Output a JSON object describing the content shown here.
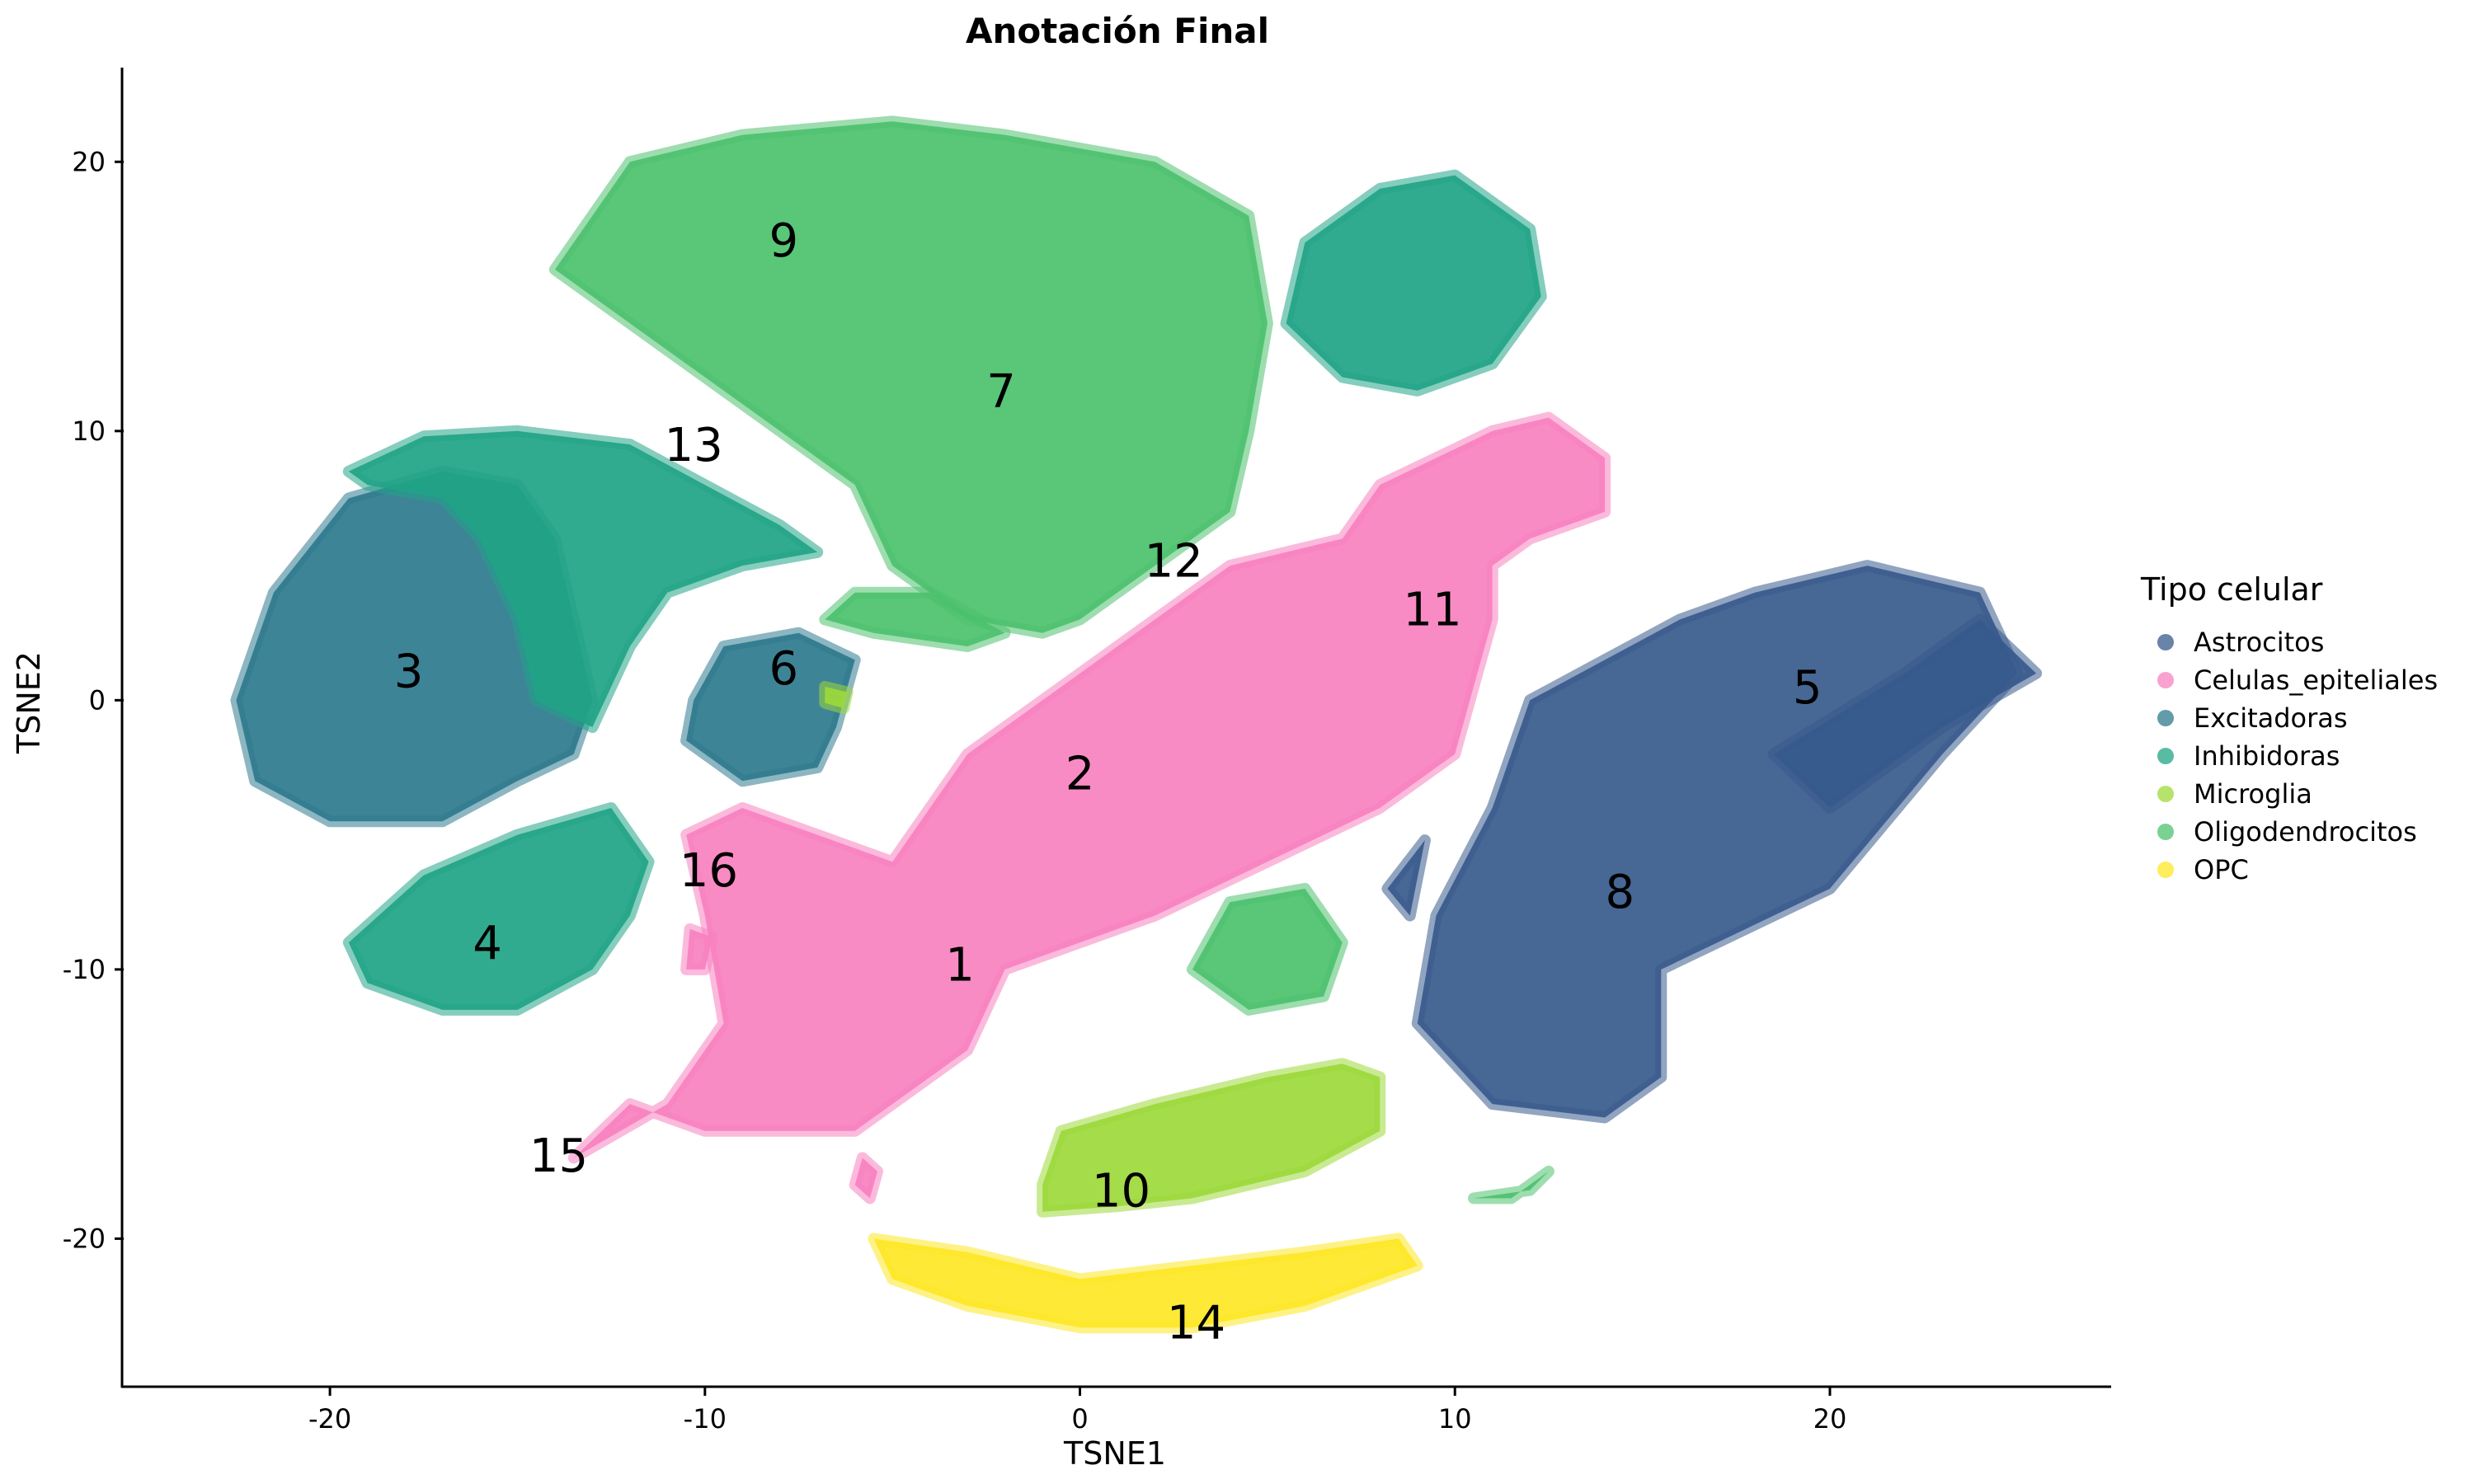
{
  "chart_data": {
    "type": "scatter",
    "title": "Anotación Final",
    "xlabel": "TSNE1",
    "ylabel": "TSNE2",
    "xlim": [
      -25.5,
      27.5
    ],
    "ylim": [
      -25.5,
      23.5
    ],
    "x_ticks": [
      -20,
      -10,
      0,
      10,
      20
    ],
    "x_tick_labels": [
      "-20",
      "-10",
      "0",
      "10",
      "20"
    ],
    "y_ticks": [
      -20,
      -10,
      0,
      10,
      20
    ],
    "y_tick_labels": [
      "-20",
      "-10",
      "0",
      "10",
      "20"
    ],
    "grid": false,
    "legend": {
      "title": "Tipo celular",
      "placement": "right",
      "entries": [
        {
          "name": "Astrocitos",
          "color": "#375A8C"
        },
        {
          "name": "Celulas_epiteliales",
          "color": "#F781BF"
        },
        {
          "name": "Excitadoras",
          "color": "#2E7A8E"
        },
        {
          "name": "Inhibidoras",
          "color": "#20A486"
        },
        {
          "name": "Microglia",
          "color": "#9DD93B"
        },
        {
          "name": "Oligodendrocitos",
          "color": "#4CC16D"
        },
        {
          "name": "OPC",
          "color": "#FDE725"
        }
      ]
    },
    "series": [
      {
        "name": "Astrocitos",
        "color": "#375A8C",
        "regions": [
          [
            [
              15.5,
              -10
            ],
            [
              20,
              -7
            ],
            [
              23,
              -2
            ],
            [
              25,
              1
            ],
            [
              24,
              4
            ],
            [
              21,
              5
            ],
            [
              18,
              4
            ],
            [
              16,
              3
            ],
            [
              12,
              0
            ],
            [
              11,
              -4
            ],
            [
              9.5,
              -8
            ],
            [
              9,
              -12
            ],
            [
              11,
              -15
            ],
            [
              14,
              -15.5
            ],
            [
              15.5,
              -14
            ]
          ],
          [
            [
              18.5,
              -2
            ],
            [
              22,
              1
            ],
            [
              24,
              3
            ],
            [
              25.5,
              1
            ],
            [
              23,
              -1
            ],
            [
              20,
              -4
            ]
          ],
          [
            [
              8.2,
              -7
            ],
            [
              9.2,
              -5.2
            ],
            [
              8.8,
              -8
            ]
          ]
        ]
      },
      {
        "name": "Celulas_epiteliales",
        "color": "#F781BF",
        "regions": [
          [
            [
              -13.5,
              -17
            ],
            [
              -11,
              -15
            ],
            [
              -9.5,
              -12
            ],
            [
              -10,
              -8
            ],
            [
              -10.5,
              -5
            ],
            [
              -9,
              -4
            ],
            [
              -7,
              -5
            ],
            [
              -5,
              -6
            ],
            [
              -3,
              -2
            ],
            [
              1,
              2
            ],
            [
              4,
              5
            ],
            [
              7,
              6
            ],
            [
              8,
              8
            ],
            [
              11,
              10
            ],
            [
              12.5,
              10.5
            ],
            [
              14,
              9
            ],
            [
              14,
              7
            ],
            [
              12,
              6
            ],
            [
              11,
              5
            ],
            [
              11,
              3
            ],
            [
              10,
              -2
            ],
            [
              8,
              -4
            ],
            [
              5,
              -6
            ],
            [
              2,
              -8
            ],
            [
              0,
              -9
            ],
            [
              -2,
              -10
            ],
            [
              -3,
              -13
            ],
            [
              -6,
              -16
            ],
            [
              -10,
              -16
            ],
            [
              -12,
              -15
            ]
          ],
          [
            [
              -5.8,
              -17
            ],
            [
              -5.4,
              -17.5
            ],
            [
              -5.6,
              -18.5
            ],
            [
              -6,
              -18
            ]
          ],
          [
            [
              -10.4,
              -8.5
            ],
            [
              -9.8,
              -8.8
            ],
            [
              -10,
              -10
            ],
            [
              -10.5,
              -10
            ]
          ]
        ]
      },
      {
        "name": "Excitadoras",
        "color": "#2E7A8E",
        "regions": [
          [
            [
              -22.5,
              0
            ],
            [
              -21.5,
              4
            ],
            [
              -19.5,
              7.5
            ],
            [
              -17,
              8.5
            ],
            [
              -15,
              8
            ],
            [
              -14,
              6
            ],
            [
              -13.5,
              3
            ],
            [
              -13,
              0
            ],
            [
              -13.5,
              -2
            ],
            [
              -15,
              -3
            ],
            [
              -17,
              -4.5
            ],
            [
              -20,
              -4.5
            ],
            [
              -22,
              -3
            ]
          ],
          [
            [
              -10.3,
              0
            ],
            [
              -9.5,
              2
            ],
            [
              -7.5,
              2.5
            ],
            [
              -6,
              1.5
            ],
            [
              -6.5,
              -1
            ],
            [
              -7,
              -2.5
            ],
            [
              -9,
              -3
            ],
            [
              -10.5,
              -1.5
            ]
          ]
        ]
      },
      {
        "name": "Inhibidoras",
        "color": "#20A486",
        "regions": [
          [
            [
              -19.5,
              8.5
            ],
            [
              -17.5,
              9.8
            ],
            [
              -15,
              10
            ],
            [
              -12,
              9.5
            ],
            [
              -10,
              8
            ],
            [
              -8,
              6.5
            ],
            [
              -7,
              5.5
            ],
            [
              -9,
              5
            ],
            [
              -11,
              4
            ],
            [
              -12,
              2
            ],
            [
              -13,
              -1
            ],
            [
              -14.5,
              0
            ],
            [
              -15,
              3
            ],
            [
              -16,
              6
            ],
            [
              -17,
              7.5
            ],
            [
              -19,
              8
            ]
          ],
          [
            [
              -19.5,
              -9
            ],
            [
              -17.5,
              -6.5
            ],
            [
              -15,
              -5
            ],
            [
              -12.5,
              -4
            ],
            [
              -11.5,
              -6
            ],
            [
              -12,
              -8
            ],
            [
              -13,
              -10
            ],
            [
              -15,
              -11.5
            ],
            [
              -17,
              -11.5
            ],
            [
              -19,
              -10.5
            ]
          ],
          [
            [
              5.5,
              14
            ],
            [
              6,
              17
            ],
            [
              8,
              19
            ],
            [
              10,
              19.5
            ],
            [
              12,
              17.5
            ],
            [
              12.3,
              15
            ],
            [
              11,
              12.5
            ],
            [
              9,
              11.5
            ],
            [
              7,
              12
            ]
          ]
        ]
      },
      {
        "name": "Microglia",
        "color": "#9DD93B",
        "regions": [
          [
            [
              -1,
              -18
            ],
            [
              -0.5,
              -16
            ],
            [
              2,
              -15
            ],
            [
              5,
              -14
            ],
            [
              7,
              -13.5
            ],
            [
              8,
              -14
            ],
            [
              8,
              -16
            ],
            [
              6,
              -17.5
            ],
            [
              3,
              -18.5
            ],
            [
              1,
              -18.8
            ],
            [
              -1,
              -19
            ]
          ],
          [
            [
              -6.8,
              0.5
            ],
            [
              -6.2,
              0.3
            ],
            [
              -6.3,
              -0.3
            ],
            [
              -6.8,
              -0.1
            ]
          ]
        ]
      },
      {
        "name": "Oligodendrocitos",
        "color": "#4CC16D",
        "regions": [
          [
            [
              -14,
              16
            ],
            [
              -12,
              20
            ],
            [
              -9,
              21
            ],
            [
              -5,
              21.5
            ],
            [
              -2,
              21
            ],
            [
              2,
              20
            ],
            [
              4.5,
              18
            ],
            [
              5,
              14
            ],
            [
              4.5,
              10
            ],
            [
              4,
              7
            ],
            [
              2,
              5
            ],
            [
              0,
              3
            ],
            [
              -1,
              2.5
            ],
            [
              -3,
              3
            ],
            [
              -5,
              5
            ],
            [
              -6,
              8
            ],
            [
              -8,
              10
            ],
            [
              -10,
              12
            ],
            [
              -12,
              14
            ]
          ],
          [
            [
              -6.8,
              3
            ],
            [
              -5.5,
              2.5
            ],
            [
              -3,
              2
            ],
            [
              -2,
              2.5
            ],
            [
              -4,
              4
            ],
            [
              -6,
              4
            ]
          ],
          [
            [
              3,
              -10
            ],
            [
              4,
              -7.5
            ],
            [
              6,
              -7
            ],
            [
              7,
              -9
            ],
            [
              6.5,
              -11
            ],
            [
              4.5,
              -11.5
            ]
          ],
          [
            [
              10.5,
              -18.5
            ],
            [
              12,
              -18.2
            ],
            [
              12.5,
              -17.5
            ],
            [
              11.5,
              -18.5
            ]
          ]
        ]
      },
      {
        "name": "OPC",
        "color": "#FDE725",
        "regions": [
          [
            [
              -5.5,
              -20
            ],
            [
              -3,
              -20.5
            ],
            [
              0,
              -21.5
            ],
            [
              3,
              -21
            ],
            [
              6,
              -20.5
            ],
            [
              8.5,
              -20
            ],
            [
              9,
              -21
            ],
            [
              6,
              -22.5
            ],
            [
              3,
              -23.3
            ],
            [
              0,
              -23.3
            ],
            [
              -3,
              -22.5
            ],
            [
              -5,
              -21.5
            ]
          ]
        ]
      }
    ],
    "annotations": [
      {
        "text": "9",
        "x": -7.9,
        "y": 17.1
      },
      {
        "text": "7",
        "x": -2.1,
        "y": 11.5
      },
      {
        "text": "13",
        "x": -10.3,
        "y": 9.5
      },
      {
        "text": "12",
        "x": 2.5,
        "y": 5.2
      },
      {
        "text": "11",
        "x": 9.4,
        "y": 3.4
      },
      {
        "text": "3",
        "x": -17.9,
        "y": 1.1
      },
      {
        "text": "6",
        "x": -7.9,
        "y": 1.2
      },
      {
        "text": "5",
        "x": 19.4,
        "y": 0.5
      },
      {
        "text": "2",
        "x": 0.0,
        "y": -2.7
      },
      {
        "text": "16",
        "x": -9.9,
        "y": -6.3
      },
      {
        "text": "8",
        "x": 14.4,
        "y": -7.1
      },
      {
        "text": "4",
        "x": -15.8,
        "y": -9.0
      },
      {
        "text": "1",
        "x": -3.2,
        "y": -9.8
      },
      {
        "text": "15",
        "x": -13.9,
        "y": -16.9
      },
      {
        "text": "10",
        "x": 1.1,
        "y": -18.2
      },
      {
        "text": "14",
        "x": 3.1,
        "y": -23.1
      }
    ]
  }
}
